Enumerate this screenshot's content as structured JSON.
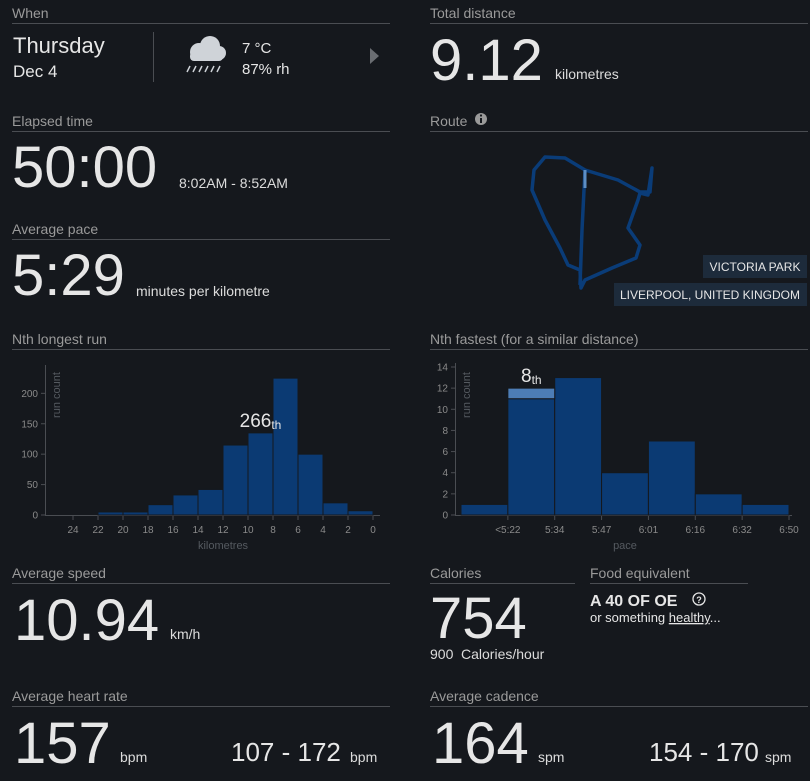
{
  "when": {
    "header": "When",
    "day": "Thursday",
    "date": "Dec 4",
    "temperature": "7 °C",
    "humidity": "87% rh"
  },
  "elapsed": {
    "header": "Elapsed time",
    "value": "50:00",
    "range": "8:02AM - 8:52AM"
  },
  "pace": {
    "header": "Average pace",
    "value": "5:29",
    "unit": "minutes per kilometre"
  },
  "distance": {
    "header": "Total distance",
    "value": "9.12",
    "unit": "kilometres"
  },
  "route": {
    "header": "Route",
    "place": "VICTORIA PARK",
    "city": "LIVERPOOL, UNITED KINGDOM"
  },
  "speed": {
    "header": "Average speed",
    "value": "10.94",
    "unit": "km/h"
  },
  "calories": {
    "header": "Calories",
    "value": "754",
    "per_hour": "900",
    "per_hour_unit": "Calories/hour"
  },
  "food": {
    "header": "Food equivalent",
    "item": "A 40 OF OE",
    "prefix": "or something",
    "link": "healthy",
    "suffix": "..."
  },
  "heart_rate": {
    "header": "Average heart rate",
    "value": "157",
    "unit": "bpm",
    "range": "107 - 172",
    "range_unit": "bpm"
  },
  "cadence": {
    "header": "Average cadence",
    "value": "164",
    "unit": "spm",
    "range": "154 - 170",
    "range_unit": "spm"
  },
  "chart_data": [
    {
      "type": "histogram",
      "title": "Nth longest run",
      "bins": [
        22,
        20,
        18,
        16,
        14,
        12,
        10,
        8,
        6,
        4,
        2,
        0
      ],
      "values": [
        5,
        5,
        17,
        33,
        42,
        115,
        135,
        225,
        100,
        20,
        7
      ],
      "xlim": [
        24,
        0
      ],
      "xticks": [
        24,
        22,
        20,
        18,
        16,
        14,
        12,
        10,
        8,
        6,
        4,
        2,
        0
      ],
      "ylim": [
        0,
        240
      ],
      "yticks": [
        0,
        50,
        100,
        150,
        200
      ],
      "x_label": "kilometres",
      "y_label": "run count",
      "color": "#0b3a73",
      "annotation": {
        "text": "266",
        "suffix": "th",
        "index": 6
      }
    },
    {
      "type": "bar",
      "title": "Nth fastest (for a similar distance)",
      "edge_labels": [
        "<5:22",
        "5:34",
        "5:47",
        "6:01",
        "6:16",
        "6:32",
        "6:50"
      ],
      "values": [
        1,
        11,
        13,
        4,
        7,
        2,
        1
      ],
      "highlight": {
        "index": 1,
        "value": 1,
        "color": "#4d7db6"
      },
      "ylim": [
        0,
        14
      ],
      "yticks": [
        0,
        2,
        4,
        6,
        8,
        10,
        12,
        14
      ],
      "x_label": "pace",
      "y_label": "run count",
      "color": "#0b3a73",
      "annotation": {
        "text": "8",
        "suffix": "th",
        "index": 1
      }
    }
  ]
}
